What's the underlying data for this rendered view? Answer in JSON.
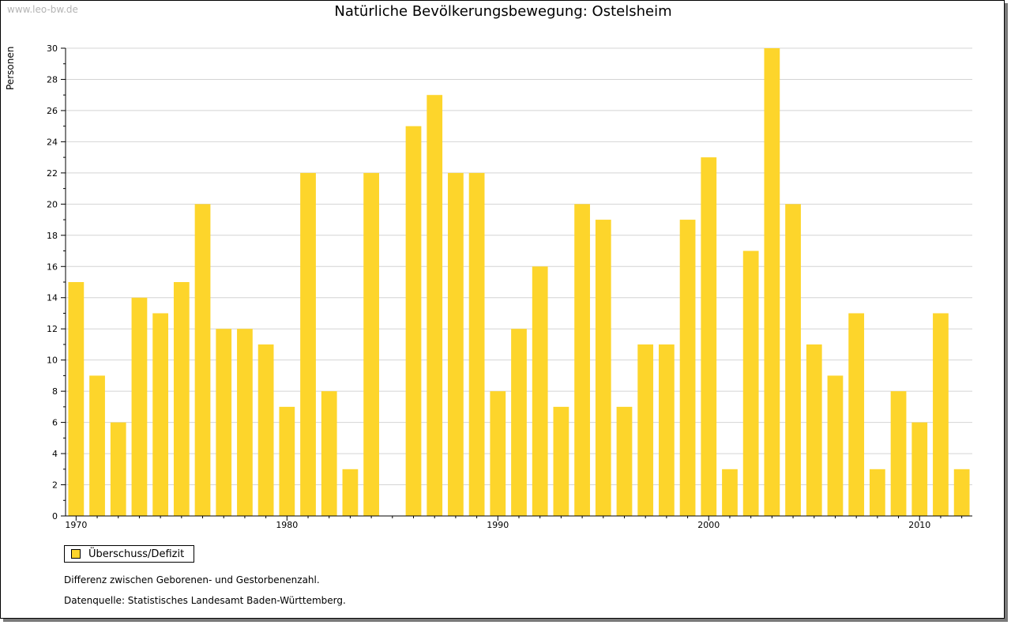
{
  "watermark": "www.leo-bw.de",
  "chart_data": {
    "type": "bar",
    "title": "Natürliche Bevölkerungsbewegung: Ostelsheim",
    "ylabel": "Personen",
    "xlabel": "",
    "ylim": [
      0,
      30
    ],
    "yticks": [
      0,
      2,
      4,
      6,
      8,
      10,
      12,
      14,
      16,
      18,
      20,
      22,
      24,
      26,
      28,
      30
    ],
    "xlim": [
      1969.5,
      2012.5
    ],
    "xticks": [
      1970,
      1980,
      1990,
      2000,
      2010
    ],
    "grid": true,
    "legend_position": "bottom-left",
    "series": [
      {
        "name": "Überschuss/Defizit",
        "color": "#fdd52b",
        "x": [
          1970,
          1971,
          1972,
          1973,
          1974,
          1975,
          1976,
          1977,
          1978,
          1979,
          1980,
          1981,
          1982,
          1983,
          1984,
          1985,
          1986,
          1987,
          1988,
          1989,
          1990,
          1991,
          1992,
          1993,
          1994,
          1995,
          1996,
          1997,
          1998,
          1999,
          2000,
          2001,
          2002,
          2003,
          2004,
          2005,
          2006,
          2007,
          2008,
          2009,
          2010,
          2011,
          2012
        ],
        "values": [
          15,
          9,
          6,
          14,
          13,
          15,
          20,
          12,
          12,
          11,
          7,
          22,
          8,
          3,
          22,
          0,
          25,
          27,
          22,
          22,
          8,
          12,
          16,
          7,
          20,
          19,
          7,
          11,
          11,
          19,
          23,
          3,
          17,
          30,
          20,
          11,
          9,
          13,
          3,
          8,
          6,
          13,
          3
        ]
      }
    ]
  },
  "legend": {
    "label": "Überschuss/Defizit"
  },
  "notes": {
    "description": "Differenz zwischen Geborenen- und Gestorbenenzahl.",
    "source": "Datenquelle: Statistisches Landesamt Baden-Württemberg."
  }
}
